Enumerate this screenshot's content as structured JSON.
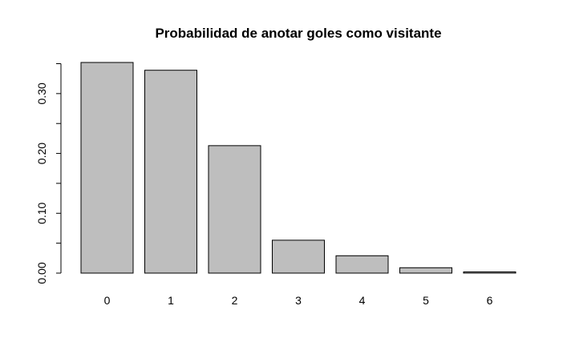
{
  "chart_data": {
    "type": "bar",
    "title": "Probabilidad de anotar goles como visitante",
    "xlabel": "",
    "ylabel": "",
    "categories": [
      "0",
      "1",
      "2",
      "3",
      "4",
      "5",
      "6"
    ],
    "values": [
      0.352,
      0.339,
      0.213,
      0.055,
      0.029,
      0.009,
      0.002
    ],
    "ylim": [
      0,
      0.352
    ],
    "yticks": [
      0.0,
      0.1,
      0.2,
      0.3
    ],
    "ytick_labels": [
      "0.00",
      "0.10",
      "0.20",
      "0.30"
    ],
    "grid": false,
    "bar_color": "#bebebe",
    "border_color": "#000000"
  }
}
